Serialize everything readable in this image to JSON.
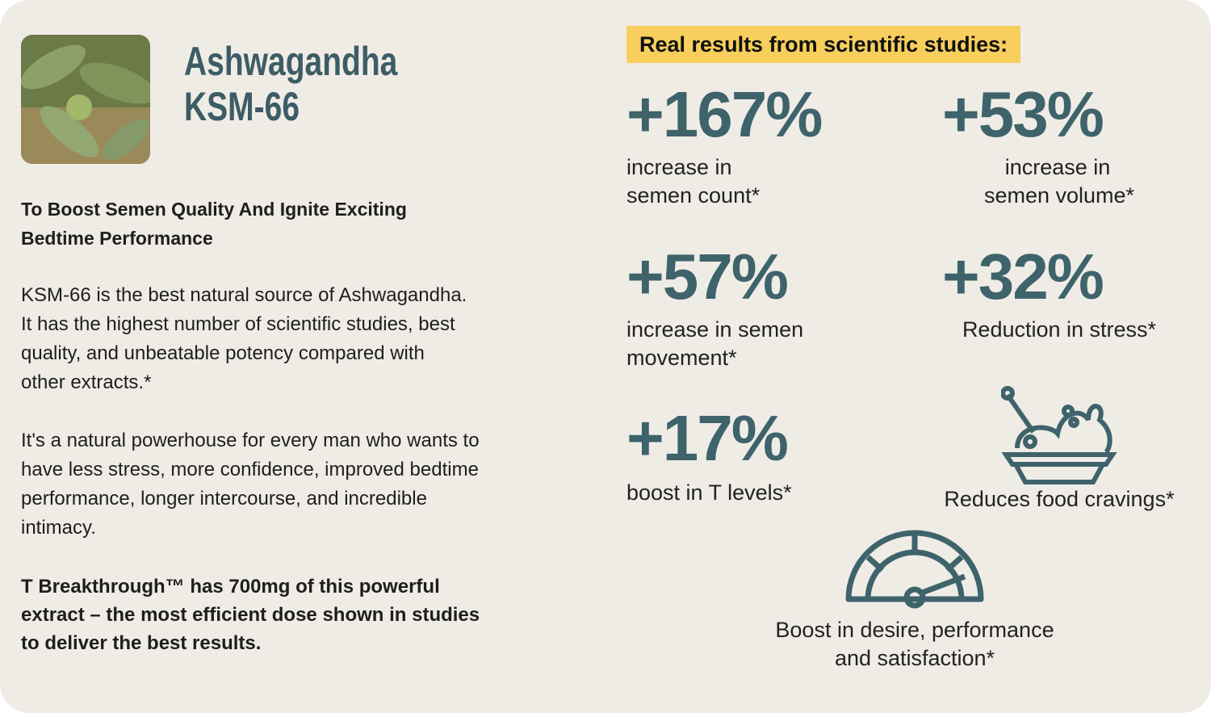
{
  "header": {
    "title_lines": [
      "Ashwagandha",
      "KSM-66"
    ]
  },
  "intro": {
    "heading_lines": [
      "To Boost Semen Quality And Ignite Exciting",
      "Bedtime Performance"
    ],
    "paragraphs": [
      [
        "KSM-66 is the best natural source of Ashwagandha.",
        "It has the highest number of scientific studies, best",
        "quality, and unbeatable potency compared with",
        "other extracts.*"
      ],
      [
        "It's a natural powerhouse for every man who wants to",
        "have less stress, more confidence, improved bedtime",
        "performance, longer intercourse, and incredible",
        "intimacy."
      ]
    ],
    "closing_lines": [
      "T Breakthrough™ has 700mg of this powerful",
      "extract – the most efficient dose shown in studies",
      "to deliver the best results."
    ]
  },
  "results": {
    "badge": "Real results from scientific studies:",
    "stats": [
      {
        "figure": "+167%",
        "caption_lines": [
          "increase in",
          "semen count*"
        ]
      },
      {
        "figure": "+53%",
        "caption_lines": [
          "increase in",
          "semen volume*"
        ]
      },
      {
        "figure": "+57%",
        "caption_lines": [
          "increase in semen",
          "movement*"
        ]
      },
      {
        "figure": "+32%",
        "caption_lines": [
          "Reduction in stress*"
        ]
      },
      {
        "figure": "+17%",
        "caption_lines": [
          "boost in T levels*"
        ]
      }
    ],
    "icon_captions": [
      [
        "Reduces food cravings*"
      ],
      [
        "Boost in desire, performance",
        "and satisfaction*"
      ]
    ]
  }
}
